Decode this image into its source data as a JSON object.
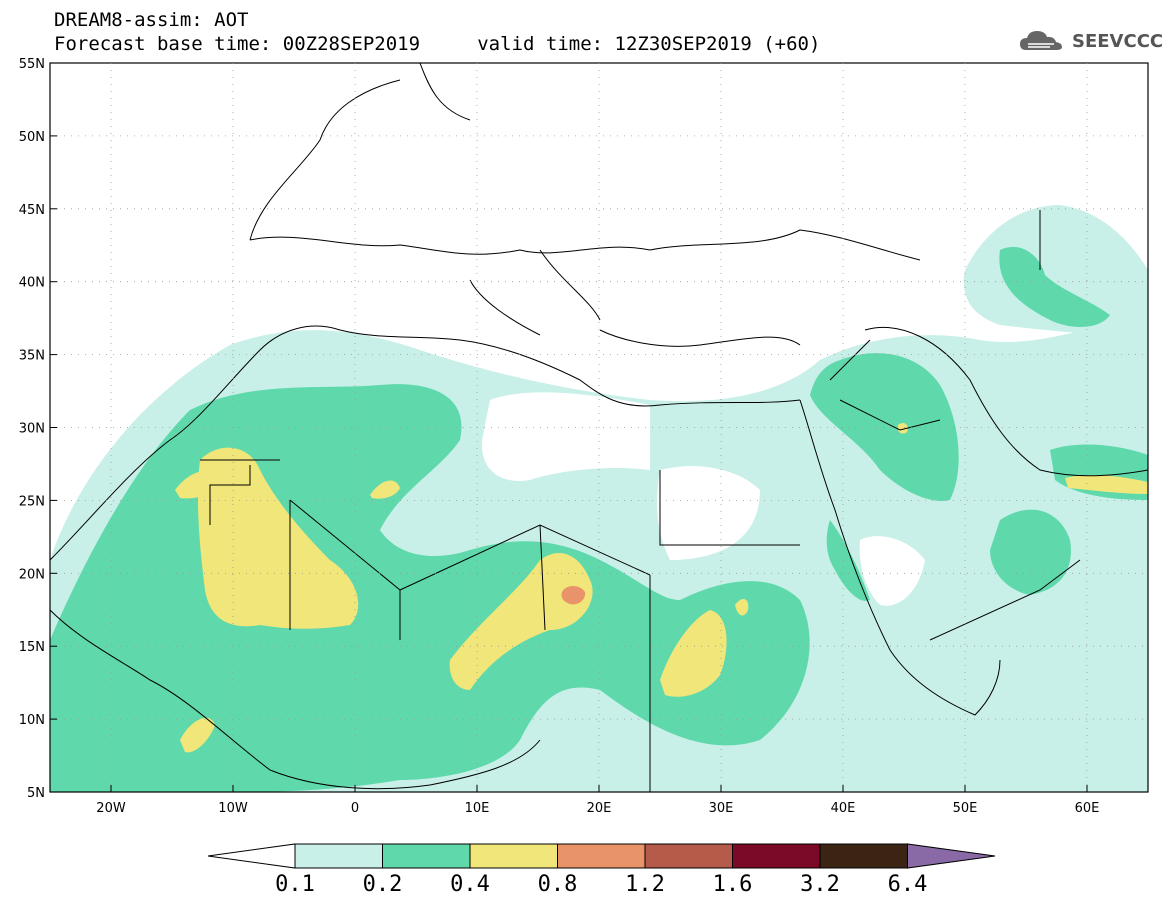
{
  "header": {
    "title_line1": "DREAM8-assim: AOT",
    "title_line2": "Forecast base time: 00Z28SEP2019     valid time: 12Z30SEP2019 (+60)",
    "logo_text": "SEEVCCC",
    "logo_icon": "cloud-logo-icon"
  },
  "map": {
    "lon_range": [
      -25,
      65
    ],
    "lat_range": [
      5,
      55
    ],
    "lat_labels": [
      "55N",
      "50N",
      "45N",
      "40N",
      "35N",
      "30N",
      "25N",
      "20N",
      "15N",
      "10N",
      "5N"
    ],
    "lon_labels": [
      "20W",
      "10W",
      "0",
      "10E",
      "20E",
      "30E",
      "40E",
      "50E",
      "60E"
    ]
  },
  "colorbar": {
    "colors": [
      "#c8f0e8",
      "#5fd9ac",
      "#f0e67a",
      "#e8936a",
      "#b65a4a",
      "#7a0a28",
      "#3b2414",
      "#8a6aa6"
    ],
    "under_color": "#ffffff",
    "over_color": "#8a6aa6",
    "labels": [
      "0.1",
      "0.2",
      "0.4",
      "0.8",
      "1.2",
      "1.6",
      "3.2",
      "6.4"
    ]
  }
}
